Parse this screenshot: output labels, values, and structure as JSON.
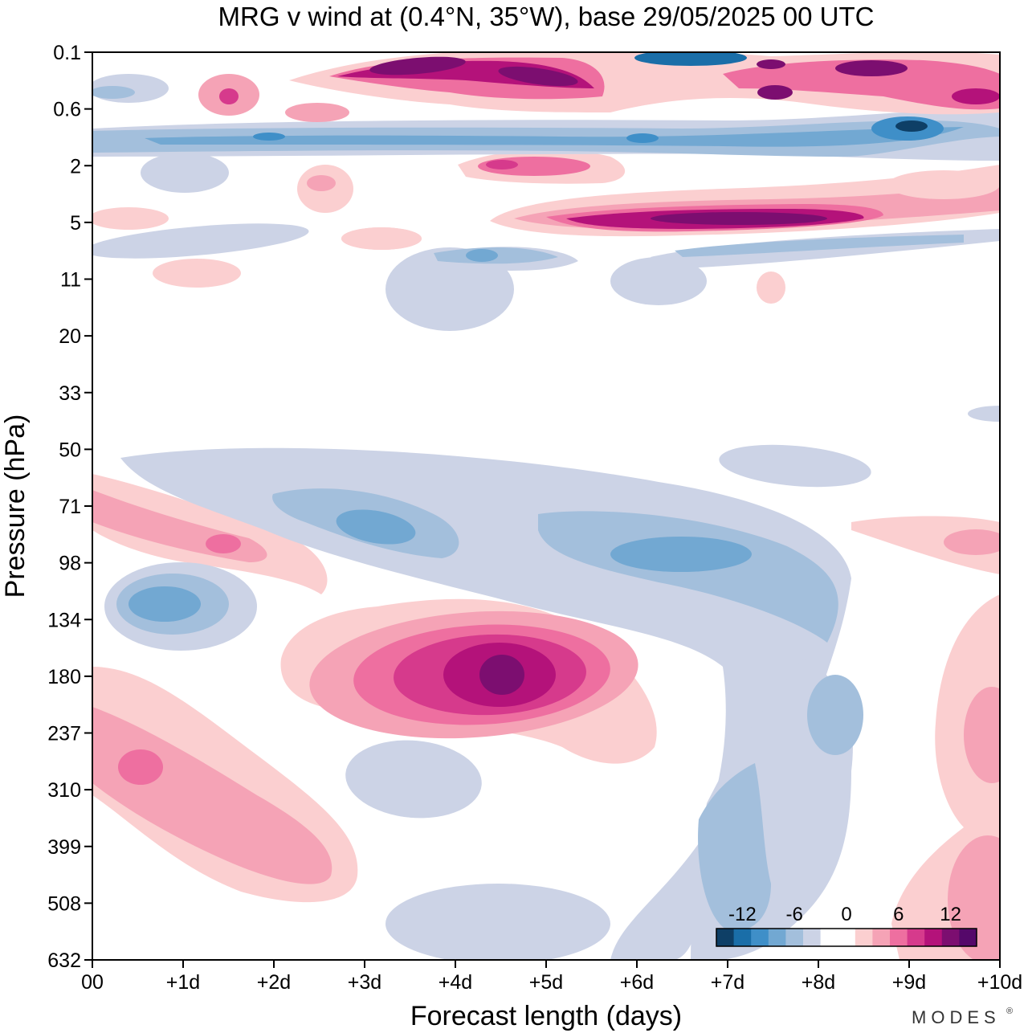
{
  "chart_data": {
    "type": "heatmap",
    "title": "MRG v wind at (0.4°N, 35°W),  base 29/05/2025  00 UTC",
    "xlabel": "Forecast length (days)",
    "ylabel": "Pressure (hPa)",
    "x_ticks": [
      "00",
      "+1d",
      "+2d",
      "+3d",
      "+4d",
      "+5d",
      "+6d",
      "+7d",
      "+8d",
      "+9d",
      "+10d"
    ],
    "y_ticks": [
      "0.1",
      "0.6",
      "2",
      "5",
      "11",
      "20",
      "33",
      "50",
      "71",
      "98",
      "134",
      "180",
      "237",
      "310",
      "399",
      "508",
      "632"
    ],
    "xlim_days": [
      0,
      10
    ],
    "y_scale": "log",
    "y_inverted": true,
    "colorbar": {
      "labels": [
        "-12",
        "-6",
        "0",
        "6",
        "12"
      ],
      "levels": [
        -14,
        -12,
        -10,
        -8,
        -6,
        -4,
        -2,
        2,
        4,
        6,
        8,
        10,
        12,
        14
      ],
      "colors": [
        "#0e3f66",
        "#1a6ea8",
        "#3f8fc8",
        "#72a8d2",
        "#a3bfdc",
        "#ccd3e6",
        "#ffffff",
        "#ffffff",
        "#fbcfd0",
        "#f5a3b6",
        "#ee6fa0",
        "#d63a8c",
        "#b4127a",
        "#7c0e70",
        "#55086a"
      ],
      "placement": "bottom-right"
    },
    "features": [
      {
        "desc": "positive maximum",
        "x_day": 4.5,
        "p_hpa": 180,
        "value": 14
      },
      {
        "desc": "positive maximum",
        "x_day": 0.55,
        "p_hpa": 290,
        "value": 8
      },
      {
        "desc": "positive maximum",
        "x_day": 1.5,
        "p_hpa": 95,
        "value": 6
      },
      {
        "desc": "negative minimum",
        "x_day": 1.0,
        "p_hpa": 122,
        "value": -8
      },
      {
        "desc": "negative minimum",
        "x_day": 3.2,
        "p_hpa": 78,
        "value": -8
      },
      {
        "desc": "negative minimum",
        "x_day": 6.8,
        "p_hpa": 92,
        "value": -8
      },
      {
        "desc": "positive band",
        "x_day": 7.5,
        "p_hpa": 5,
        "value": 14
      },
      {
        "desc": "positive band",
        "x_day": 5.0,
        "p_hpa": 0.2,
        "value": 14
      },
      {
        "desc": "negative band",
        "x_day": 9.0,
        "p_hpa": 1.0,
        "value": -12
      }
    ]
  },
  "branding": {
    "logo_text": "MODES",
    "logo_mark": "®"
  },
  "colors": {
    "background": "#ffffff",
    "axis": "#000000"
  }
}
